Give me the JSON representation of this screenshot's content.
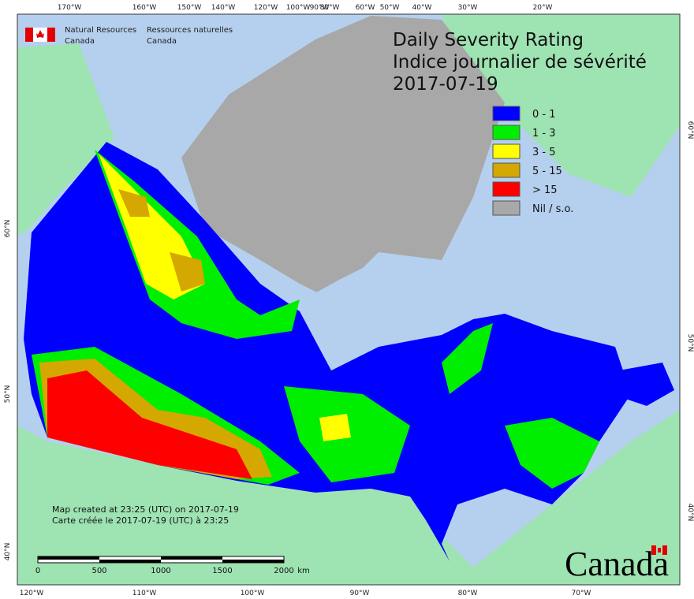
{
  "agency": {
    "en": [
      "Natural Resources",
      "Canada"
    ],
    "fr": [
      "Ressources naturelles",
      "Canada"
    ]
  },
  "title": [
    "Daily Severity Rating",
    "Indice journalier de sévérité",
    "2017-07-19"
  ],
  "legend": [
    {
      "label": "0 - 1",
      "color": "#0000ff"
    },
    {
      "label": "1 - 3",
      "color": "#00ee00"
    },
    {
      "label": "3 - 5",
      "color": "#ffff00"
    },
    {
      "label": "5 - 15",
      "color": "#d4a800"
    },
    {
      "label": "> 15",
      "color": "#ff0000"
    },
    {
      "label": "Nil / s.o.",
      "color": "#a8a8a8"
    }
  ],
  "graticule": {
    "top": [
      "170°W",
      "160°W",
      "150°W",
      "140°W",
      "120°W",
      "100°W",
      "90°W",
      "80°W",
      "60°W",
      "50°W",
      "40°W",
      "30°W",
      "20°W"
    ],
    "bottom": [
      "120°W",
      "110°W",
      "100°W",
      "90°W",
      "80°W",
      "70°W"
    ],
    "left": [
      "60°N",
      "50°N",
      "40°N"
    ],
    "right": [
      "60°N",
      "50°N",
      "40°N"
    ]
  },
  "footer": [
    "Map created at 23:25 (UTC) on 2017-07-19",
    "Carte créée le 2017-07-19 (UTC) à 23:25"
  ],
  "scale": [
    "0",
    "500",
    "1000",
    "1500",
    "2000",
    "km"
  ],
  "wordmark": "Canada"
}
